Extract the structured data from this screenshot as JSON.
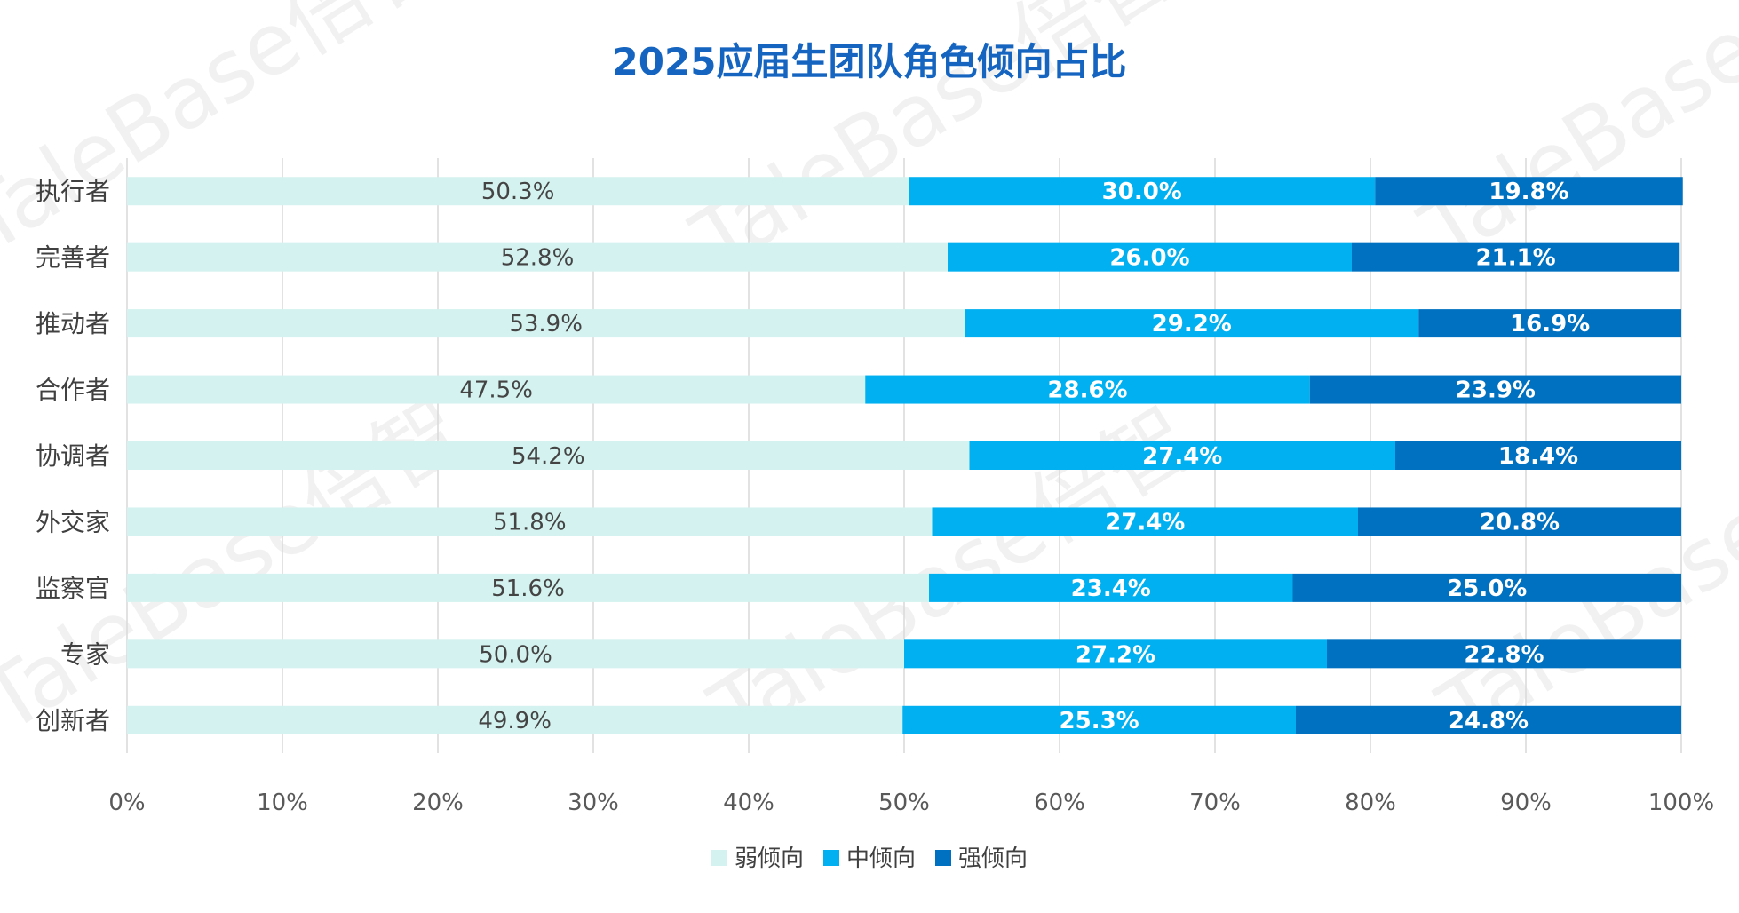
{
  "chart_data": {
    "type": "bar",
    "orientation": "horizontal",
    "stacked": "percent",
    "title": "2025应届生团队角色倾向占比",
    "categories": [
      "执行者",
      "完善者",
      "推动者",
      "合作者",
      "协调者",
      "外交家",
      "监察官",
      "专家",
      "创新者"
    ],
    "series": [
      {
        "name": "弱倾向",
        "color": "#d4f2ef",
        "label_color": "#444444",
        "values": [
          50.3,
          52.8,
          53.9,
          47.5,
          54.2,
          51.8,
          51.6,
          50.0,
          49.9
        ],
        "labels": [
          "50.3%",
          "52.8%",
          "53.9%",
          "47.5%",
          "54.2%",
          "51.8%",
          "51.6%",
          "50.0%",
          "49.9%"
        ]
      },
      {
        "name": "中倾向",
        "color": "#00b0f0",
        "label_color": "#ffffff",
        "values": [
          30.0,
          26.0,
          29.2,
          28.6,
          27.4,
          27.4,
          23.4,
          27.2,
          25.3
        ],
        "labels": [
          "30.0%",
          "26.0%",
          "29.2%",
          "28.6%",
          "27.4%",
          "27.4%",
          "23.4%",
          "27.2%",
          "25.3%"
        ]
      },
      {
        "name": "强倾向",
        "color": "#0070c0",
        "label_color": "#ffffff",
        "values": [
          19.8,
          21.1,
          16.9,
          23.9,
          18.4,
          20.8,
          25.0,
          22.8,
          24.8
        ],
        "labels": [
          "19.8%",
          "21.1%",
          "16.9%",
          "23.9%",
          "18.4%",
          "20.8%",
          "25.0%",
          "22.8%",
          "24.8%"
        ]
      }
    ],
    "x_ticks": [
      "0%",
      "10%",
      "20%",
      "30%",
      "40%",
      "50%",
      "60%",
      "70%",
      "80%",
      "90%",
      "100%"
    ],
    "xlim": [
      0,
      100
    ],
    "grid": "vertical",
    "legend": "bottom-center",
    "title_color": "#1565c0"
  },
  "watermark": {
    "text": "TaleBase倍智"
  }
}
